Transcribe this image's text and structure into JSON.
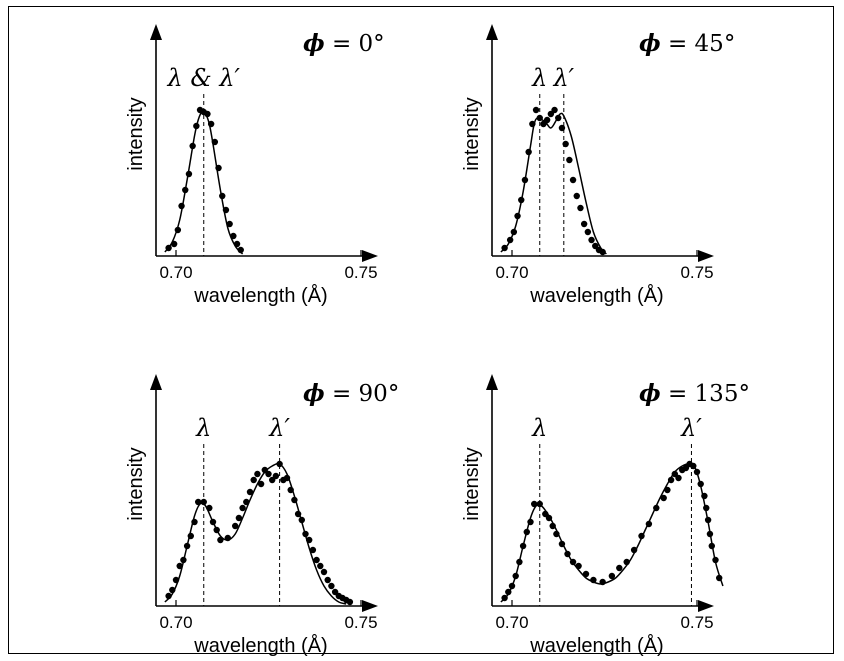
{
  "chart_data": [
    {
      "type": "scatter",
      "title": "ϕ = 0°",
      "title_symbol": "ϕ",
      "title_value": " = 0°",
      "xlabel": "wavelength (Å)",
      "ylabel": "intensity",
      "xlim": [
        0.693,
        0.758
      ],
      "ylim": [
        0,
        1.0
      ],
      "xticks": [
        0.7,
        0.75
      ],
      "xtick_labels": [
        "0.70",
        "0.75"
      ],
      "peaks": [
        {
          "label": "λ & λ′",
          "x": 0.7075
        }
      ],
      "series": [
        {
          "kind": "points",
          "x": [
            0.698,
            0.6995,
            0.7005,
            0.7015,
            0.7025,
            0.7035,
            0.7045,
            0.7055,
            0.7065,
            0.7075,
            0.7085,
            0.7095,
            0.7105,
            0.7115,
            0.7125,
            0.7135,
            0.7145,
            0.7155,
            0.7165,
            0.7175
          ],
          "y": [
            0.04,
            0.06,
            0.13,
            0.25,
            0.33,
            0.41,
            0.55,
            0.65,
            0.73,
            0.72,
            0.71,
            0.66,
            0.57,
            0.44,
            0.3,
            0.23,
            0.16,
            0.1,
            0.06,
            0.03
          ]
        },
        {
          "kind": "curve",
          "x": [
            0.697,
            0.699,
            0.701,
            0.703,
            0.705,
            0.706,
            0.707,
            0.708,
            0.709,
            0.71,
            0.712,
            0.714,
            0.716,
            0.718
          ],
          "y": [
            0.02,
            0.07,
            0.18,
            0.38,
            0.6,
            0.68,
            0.72,
            0.71,
            0.66,
            0.56,
            0.33,
            0.14,
            0.05,
            0.01
          ]
        }
      ]
    },
    {
      "type": "scatter",
      "title": "ϕ = 45°",
      "title_symbol": "ϕ",
      "title_value": " = 45°",
      "xlabel": "wavelength (Å)",
      "ylabel": "intensity",
      "xlim": [
        0.693,
        0.758
      ],
      "ylim": [
        0,
        1.0
      ],
      "xticks": [
        0.7,
        0.75
      ],
      "xtick_labels": [
        "0.70",
        "0.75"
      ],
      "peaks": [
        {
          "label": "λ",
          "x": 0.7075
        },
        {
          "label": "λ′",
          "x": 0.714
        }
      ],
      "series": [
        {
          "kind": "points",
          "x": [
            0.698,
            0.6995,
            0.7005,
            0.7015,
            0.7025,
            0.7035,
            0.7045,
            0.7055,
            0.7065,
            0.7075,
            0.7085,
            0.7095,
            0.7105,
            0.7115,
            0.7125,
            0.7135,
            0.7145,
            0.7155,
            0.7165,
            0.7175,
            0.7185,
            0.7195,
            0.7205,
            0.7215,
            0.7225,
            0.7235,
            0.7245
          ],
          "y": [
            0.04,
            0.08,
            0.12,
            0.2,
            0.28,
            0.38,
            0.52,
            0.66,
            0.73,
            0.69,
            0.66,
            0.68,
            0.71,
            0.73,
            0.69,
            0.64,
            0.56,
            0.48,
            0.38,
            0.3,
            0.24,
            0.16,
            0.12,
            0.08,
            0.05,
            0.03,
            0.02
          ]
        },
        {
          "kind": "curve",
          "x": [
            0.697,
            0.699,
            0.701,
            0.703,
            0.705,
            0.706,
            0.707,
            0.709,
            0.7105,
            0.712,
            0.713,
            0.714,
            0.716,
            0.718,
            0.72,
            0.722,
            0.724,
            0.7255
          ],
          "y": [
            0.02,
            0.06,
            0.15,
            0.32,
            0.55,
            0.66,
            0.69,
            0.67,
            0.64,
            0.68,
            0.71,
            0.7,
            0.6,
            0.44,
            0.27,
            0.12,
            0.04,
            0.01
          ]
        }
      ]
    },
    {
      "type": "scatter",
      "title": "ϕ = 90°",
      "title_symbol": "ϕ",
      "title_value": " = 90°",
      "xlabel": "wavelength (Å)",
      "ylabel": "intensity",
      "xlim": [
        0.693,
        0.758
      ],
      "ylim": [
        0,
        1.0
      ],
      "xticks": [
        0.7,
        0.75
      ],
      "xtick_labels": [
        "0.70",
        "0.75"
      ],
      "peaks": [
        {
          "label": "λ",
          "x": 0.7075
        },
        {
          "label": "λ′",
          "x": 0.728
        }
      ],
      "series": [
        {
          "kind": "points",
          "x": [
            0.698,
            0.699,
            0.7,
            0.701,
            0.702,
            0.703,
            0.704,
            0.705,
            0.706,
            0.7075,
            0.709,
            0.71,
            0.711,
            0.712,
            0.714,
            0.716,
            0.717,
            0.718,
            0.719,
            0.72,
            0.721,
            0.722,
            0.723,
            0.724,
            0.725,
            0.726,
            0.727,
            0.728,
            0.729,
            0.73,
            0.731,
            0.732,
            0.733,
            0.734,
            0.735,
            0.736,
            0.737,
            0.738,
            0.739,
            0.74,
            0.741,
            0.742,
            0.743,
            0.744,
            0.745,
            0.746,
            0.747
          ],
          "y": [
            0.05,
            0.08,
            0.13,
            0.2,
            0.23,
            0.3,
            0.35,
            0.42,
            0.52,
            0.52,
            0.49,
            0.42,
            0.38,
            0.33,
            0.34,
            0.4,
            0.44,
            0.49,
            0.52,
            0.57,
            0.63,
            0.66,
            0.61,
            0.68,
            0.66,
            0.63,
            0.65,
            0.71,
            0.63,
            0.64,
            0.58,
            0.53,
            0.46,
            0.43,
            0.36,
            0.33,
            0.28,
            0.23,
            0.2,
            0.17,
            0.13,
            0.1,
            0.07,
            0.05,
            0.04,
            0.03,
            0.02
          ]
        },
        {
          "kind": "curve",
          "x": [
            0.697,
            0.699,
            0.701,
            0.703,
            0.705,
            0.7065,
            0.708,
            0.71,
            0.712,
            0.714,
            0.716,
            0.718,
            0.72,
            0.722,
            0.724,
            0.726,
            0.728,
            0.73,
            0.732,
            0.734,
            0.736,
            0.738,
            0.74,
            0.742,
            0.744,
            0.746
          ],
          "y": [
            0.02,
            0.06,
            0.15,
            0.3,
            0.45,
            0.51,
            0.5,
            0.42,
            0.35,
            0.33,
            0.36,
            0.44,
            0.53,
            0.61,
            0.67,
            0.7,
            0.71,
            0.66,
            0.55,
            0.42,
            0.29,
            0.18,
            0.1,
            0.05,
            0.02,
            0.01
          ]
        }
      ]
    },
    {
      "type": "scatter",
      "title": "ϕ = 135°",
      "title_symbol": "ϕ",
      "title_value": " = 135°",
      "xlabel": "wavelength (Å)",
      "ylabel": "intensity",
      "xlim": [
        0.693,
        0.758
      ],
      "ylim": [
        0,
        1.0
      ],
      "xticks": [
        0.7,
        0.75
      ],
      "xtick_labels": [
        "0.70",
        "0.75"
      ],
      "peaks": [
        {
          "label": "λ",
          "x": 0.7075
        },
        {
          "label": "λ′",
          "x": 0.7485
        }
      ],
      "series": [
        {
          "kind": "points",
          "x": [
            0.698,
            0.699,
            0.7,
            0.701,
            0.702,
            0.703,
            0.704,
            0.705,
            0.706,
            0.7075,
            0.709,
            0.71,
            0.711,
            0.712,
            0.7135,
            0.715,
            0.7165,
            0.718,
            0.72,
            0.722,
            0.7245,
            0.727,
            0.729,
            0.731,
            0.733,
            0.735,
            0.737,
            0.739,
            0.741,
            0.742,
            0.743,
            0.744,
            0.745,
            0.746,
            0.747,
            0.748,
            0.749,
            0.75,
            0.751,
            0.752,
            0.7525,
            0.753,
            0.7535,
            0.754,
            0.755,
            0.756
          ],
          "y": [
            0.04,
            0.07,
            0.1,
            0.15,
            0.22,
            0.3,
            0.37,
            0.42,
            0.51,
            0.51,
            0.46,
            0.44,
            0.4,
            0.36,
            0.31,
            0.26,
            0.22,
            0.2,
            0.16,
            0.13,
            0.12,
            0.15,
            0.19,
            0.22,
            0.28,
            0.35,
            0.41,
            0.49,
            0.54,
            0.58,
            0.63,
            0.66,
            0.64,
            0.68,
            0.69,
            0.71,
            0.7,
            0.67,
            0.61,
            0.55,
            0.49,
            0.43,
            0.36,
            0.3,
            0.23,
            0.14
          ]
        },
        {
          "kind": "curve",
          "x": [
            0.697,
            0.699,
            0.701,
            0.703,
            0.705,
            0.7065,
            0.708,
            0.71,
            0.712,
            0.714,
            0.716,
            0.718,
            0.72,
            0.722,
            0.724,
            0.726,
            0.728,
            0.73,
            0.732,
            0.734,
            0.736,
            0.738,
            0.74,
            0.742,
            0.744,
            0.746,
            0.748,
            0.7495,
            0.751,
            0.753,
            0.755,
            0.757
          ],
          "y": [
            0.02,
            0.06,
            0.15,
            0.3,
            0.44,
            0.5,
            0.5,
            0.45,
            0.38,
            0.3,
            0.23,
            0.18,
            0.14,
            0.12,
            0.11,
            0.12,
            0.14,
            0.18,
            0.23,
            0.3,
            0.38,
            0.46,
            0.54,
            0.61,
            0.67,
            0.7,
            0.71,
            0.69,
            0.6,
            0.42,
            0.22,
            0.1
          ]
        }
      ]
    }
  ]
}
